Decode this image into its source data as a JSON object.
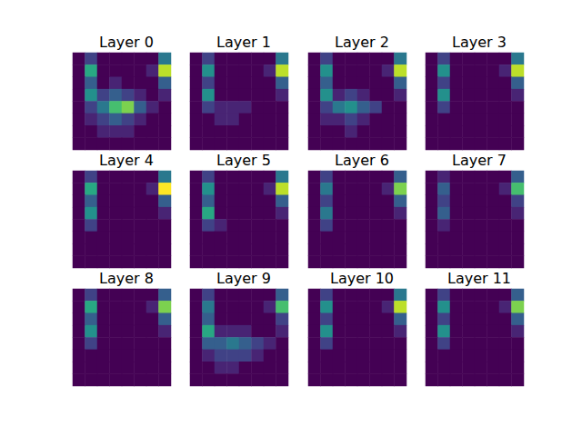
{
  "chart_data": [
    {
      "type": "heatmap",
      "title": "Layer 0",
      "value_range": [
        0,
        1
      ],
      "tick_labels": false,
      "cells": [
        [
          0,
          0.2,
          0,
          0,
          0,
          0,
          0,
          0.4
        ],
        [
          0,
          0.6,
          0,
          0,
          0,
          0,
          0.1,
          0.9
        ],
        [
          0,
          0.3,
          0,
          0.1,
          0,
          0,
          0,
          0.3
        ],
        [
          0,
          0.5,
          0.2,
          0.3,
          0.2,
          0.1,
          0,
          0.1
        ],
        [
          0,
          0.2,
          0.4,
          0.7,
          0.8,
          0.3,
          0.1,
          0
        ],
        [
          0,
          0.1,
          0.2,
          0.3,
          0.2,
          0.1,
          0,
          0
        ],
        [
          0,
          0,
          0.1,
          0.1,
          0.1,
          0,
          0,
          0
        ],
        [
          0,
          0,
          0,
          0,
          0,
          0,
          0,
          0
        ]
      ]
    },
    {
      "type": "heatmap",
      "title": "Layer 1",
      "value_range": [
        0,
        1
      ],
      "tick_labels": false,
      "cells": [
        [
          0,
          0.2,
          0,
          0,
          0,
          0,
          0,
          0.4
        ],
        [
          0,
          0.5,
          0,
          0,
          0,
          0,
          0.1,
          0.9
        ],
        [
          0,
          0.2,
          0,
          0,
          0,
          0,
          0,
          0.3
        ],
        [
          0,
          0.5,
          0,
          0,
          0,
          0,
          0,
          0.1
        ],
        [
          0,
          0.2,
          0.1,
          0.1,
          0.1,
          0,
          0,
          0
        ],
        [
          0,
          0,
          0.1,
          0.1,
          0,
          0,
          0,
          0
        ],
        [
          0,
          0,
          0,
          0,
          0,
          0,
          0,
          0
        ],
        [
          0,
          0,
          0,
          0,
          0,
          0,
          0,
          0
        ]
      ]
    },
    {
      "type": "heatmap",
      "title": "Layer 2",
      "value_range": [
        0,
        1
      ],
      "tick_labels": false,
      "cells": [
        [
          0,
          0.2,
          0,
          0,
          0,
          0,
          0,
          0.4
        ],
        [
          0,
          0.5,
          0,
          0,
          0,
          0,
          0.1,
          0.9
        ],
        [
          0,
          0.3,
          0,
          0,
          0,
          0,
          0,
          0.3
        ],
        [
          0,
          0.5,
          0.1,
          0.2,
          0.1,
          0,
          0,
          0.1
        ],
        [
          0,
          0.2,
          0.4,
          0.5,
          0.3,
          0.2,
          0,
          0
        ],
        [
          0,
          0.1,
          0.1,
          0.2,
          0.1,
          0,
          0,
          0
        ],
        [
          0,
          0,
          0,
          0.1,
          0,
          0,
          0,
          0
        ],
        [
          0,
          0,
          0,
          0,
          0,
          0,
          0,
          0
        ]
      ]
    },
    {
      "type": "heatmap",
      "title": "Layer 3",
      "value_range": [
        0,
        1
      ],
      "tick_labels": false,
      "cells": [
        [
          0,
          0.2,
          0,
          0,
          0,
          0,
          0,
          0.4
        ],
        [
          0,
          0.5,
          0,
          0,
          0,
          0,
          0.1,
          0.9
        ],
        [
          0,
          0.2,
          0,
          0,
          0,
          0,
          0,
          0.3
        ],
        [
          0,
          0.5,
          0,
          0,
          0,
          0,
          0,
          0.1
        ],
        [
          0,
          0.2,
          0,
          0,
          0,
          0,
          0,
          0
        ],
        [
          0,
          0,
          0,
          0,
          0,
          0,
          0,
          0
        ],
        [
          0,
          0,
          0,
          0,
          0,
          0,
          0,
          0
        ],
        [
          0,
          0,
          0,
          0,
          0,
          0,
          0,
          0
        ]
      ]
    },
    {
      "type": "heatmap",
      "title": "Layer 4",
      "value_range": [
        0,
        1
      ],
      "tick_labels": false,
      "cells": [
        [
          0,
          0.2,
          0,
          0,
          0,
          0,
          0,
          0.4
        ],
        [
          0,
          0.6,
          0,
          0,
          0,
          0,
          0.1,
          1
        ],
        [
          0,
          0.3,
          0,
          0,
          0,
          0,
          0,
          0.3
        ],
        [
          0,
          0.5,
          0,
          0,
          0,
          0,
          0,
          0.1
        ],
        [
          0,
          0.2,
          0,
          0,
          0,
          0,
          0,
          0
        ],
        [
          0,
          0,
          0,
          0,
          0,
          0,
          0,
          0
        ],
        [
          0,
          0,
          0,
          0,
          0,
          0,
          0,
          0
        ],
        [
          0,
          0,
          0,
          0,
          0,
          0,
          0,
          0
        ]
      ]
    },
    {
      "type": "heatmap",
      "title": "Layer 5",
      "value_range": [
        0,
        1
      ],
      "tick_labels": false,
      "cells": [
        [
          0,
          0.2,
          0,
          0,
          0,
          0,
          0,
          0.4
        ],
        [
          0,
          0.5,
          0,
          0,
          0,
          0,
          0.1,
          0.9
        ],
        [
          0,
          0.3,
          0,
          0,
          0,
          0,
          0,
          0.3
        ],
        [
          0,
          0.6,
          0,
          0,
          0,
          0,
          0,
          0.1
        ],
        [
          0,
          0.2,
          0.1,
          0,
          0,
          0,
          0,
          0
        ],
        [
          0,
          0,
          0,
          0,
          0,
          0,
          0,
          0
        ],
        [
          0,
          0,
          0,
          0,
          0,
          0,
          0,
          0
        ],
        [
          0,
          0,
          0,
          0,
          0,
          0,
          0,
          0
        ]
      ]
    },
    {
      "type": "heatmap",
      "title": "Layer 6",
      "value_range": [
        0,
        1
      ],
      "tick_labels": false,
      "cells": [
        [
          0,
          0.2,
          0,
          0,
          0,
          0,
          0,
          0.3
        ],
        [
          0,
          0.4,
          0,
          0,
          0,
          0,
          0.1,
          0.8
        ],
        [
          0,
          0.2,
          0,
          0,
          0,
          0,
          0,
          0.3
        ],
        [
          0,
          0.4,
          0,
          0,
          0,
          0,
          0,
          0.1
        ],
        [
          0,
          0.2,
          0,
          0,
          0,
          0,
          0,
          0
        ],
        [
          0,
          0,
          0,
          0,
          0,
          0,
          0,
          0
        ],
        [
          0,
          0,
          0,
          0,
          0,
          0,
          0,
          0
        ],
        [
          0,
          0,
          0,
          0,
          0,
          0,
          0,
          0
        ]
      ]
    },
    {
      "type": "heatmap",
      "title": "Layer 7",
      "value_range": [
        0,
        1
      ],
      "tick_labels": false,
      "cells": [
        [
          0,
          0.1,
          0,
          0,
          0,
          0,
          0,
          0.3
        ],
        [
          0,
          0.3,
          0,
          0,
          0,
          0,
          0.1,
          0.7
        ],
        [
          0,
          0.2,
          0,
          0,
          0,
          0,
          0,
          0.2
        ],
        [
          0,
          0.3,
          0,
          0,
          0,
          0,
          0,
          0.1
        ],
        [
          0,
          0.1,
          0,
          0,
          0,
          0,
          0,
          0
        ],
        [
          0,
          0,
          0,
          0,
          0,
          0,
          0,
          0
        ],
        [
          0,
          0,
          0,
          0,
          0,
          0,
          0,
          0
        ],
        [
          0,
          0,
          0,
          0,
          0,
          0,
          0,
          0
        ]
      ]
    },
    {
      "type": "heatmap",
      "title": "Layer 8",
      "value_range": [
        0,
        1
      ],
      "tick_labels": false,
      "cells": [
        [
          0,
          0.2,
          0,
          0,
          0,
          0,
          0,
          0.3
        ],
        [
          0,
          0.6,
          0,
          0,
          0,
          0,
          0.1,
          0.8
        ],
        [
          0,
          0.3,
          0,
          0,
          0,
          0,
          0,
          0.3
        ],
        [
          0,
          0.5,
          0,
          0,
          0,
          0,
          0,
          0.1
        ],
        [
          0,
          0.2,
          0,
          0,
          0,
          0,
          0,
          0
        ],
        [
          0,
          0,
          0,
          0,
          0,
          0,
          0,
          0
        ],
        [
          0,
          0,
          0,
          0,
          0,
          0,
          0,
          0
        ],
        [
          0,
          0,
          0,
          0,
          0,
          0,
          0,
          0
        ]
      ]
    },
    {
      "type": "heatmap",
      "title": "Layer 9",
      "value_range": [
        0,
        1
      ],
      "tick_labels": false,
      "cells": [
        [
          0,
          0.2,
          0,
          0,
          0,
          0,
          0,
          0.3
        ],
        [
          0,
          0.4,
          0,
          0,
          0,
          0,
          0.1,
          0.7
        ],
        [
          0,
          0.3,
          0,
          0,
          0,
          0,
          0,
          0.2
        ],
        [
          0,
          0.6,
          0.1,
          0.1,
          0.1,
          0,
          0,
          0.1
        ],
        [
          0,
          0.3,
          0.3,
          0.4,
          0.3,
          0.2,
          0.1,
          0
        ],
        [
          0,
          0.1,
          0.2,
          0.2,
          0.2,
          0.1,
          0,
          0
        ],
        [
          0,
          0,
          0.1,
          0.1,
          0,
          0,
          0,
          0
        ],
        [
          0,
          0,
          0,
          0,
          0,
          0,
          0,
          0
        ]
      ]
    },
    {
      "type": "heatmap",
      "title": "Layer 10",
      "value_range": [
        0,
        1
      ],
      "tick_labels": false,
      "cells": [
        [
          0,
          0.2,
          0,
          0,
          0,
          0,
          0,
          0.4
        ],
        [
          0,
          0.5,
          0,
          0,
          0,
          0,
          0.1,
          0.9
        ],
        [
          0,
          0.2,
          0,
          0,
          0,
          0,
          0,
          0.3
        ],
        [
          0,
          0.5,
          0,
          0,
          0,
          0,
          0,
          0.1
        ],
        [
          0,
          0.2,
          0,
          0,
          0,
          0,
          0,
          0
        ],
        [
          0,
          0,
          0,
          0,
          0,
          0,
          0,
          0
        ],
        [
          0,
          0,
          0,
          0,
          0,
          0,
          0,
          0
        ],
        [
          0,
          0,
          0,
          0,
          0,
          0,
          0,
          0
        ]
      ]
    },
    {
      "type": "heatmap",
      "title": "Layer 11",
      "value_range": [
        0,
        1
      ],
      "tick_labels": false,
      "cells": [
        [
          0,
          0.2,
          0,
          0,
          0,
          0,
          0,
          0.3
        ],
        [
          0,
          0.5,
          0,
          0,
          0,
          0,
          0.1,
          0.8
        ],
        [
          0,
          0.2,
          0,
          0,
          0,
          0,
          0,
          0.3
        ],
        [
          0,
          0.5,
          0,
          0,
          0,
          0,
          0,
          0.1
        ],
        [
          0,
          0.2,
          0,
          0,
          0,
          0,
          0,
          0
        ],
        [
          0,
          0,
          0,
          0,
          0,
          0,
          0,
          0
        ],
        [
          0,
          0,
          0,
          0,
          0,
          0,
          0,
          0
        ],
        [
          0,
          0,
          0,
          0,
          0,
          0,
          0,
          0
        ]
      ]
    }
  ]
}
